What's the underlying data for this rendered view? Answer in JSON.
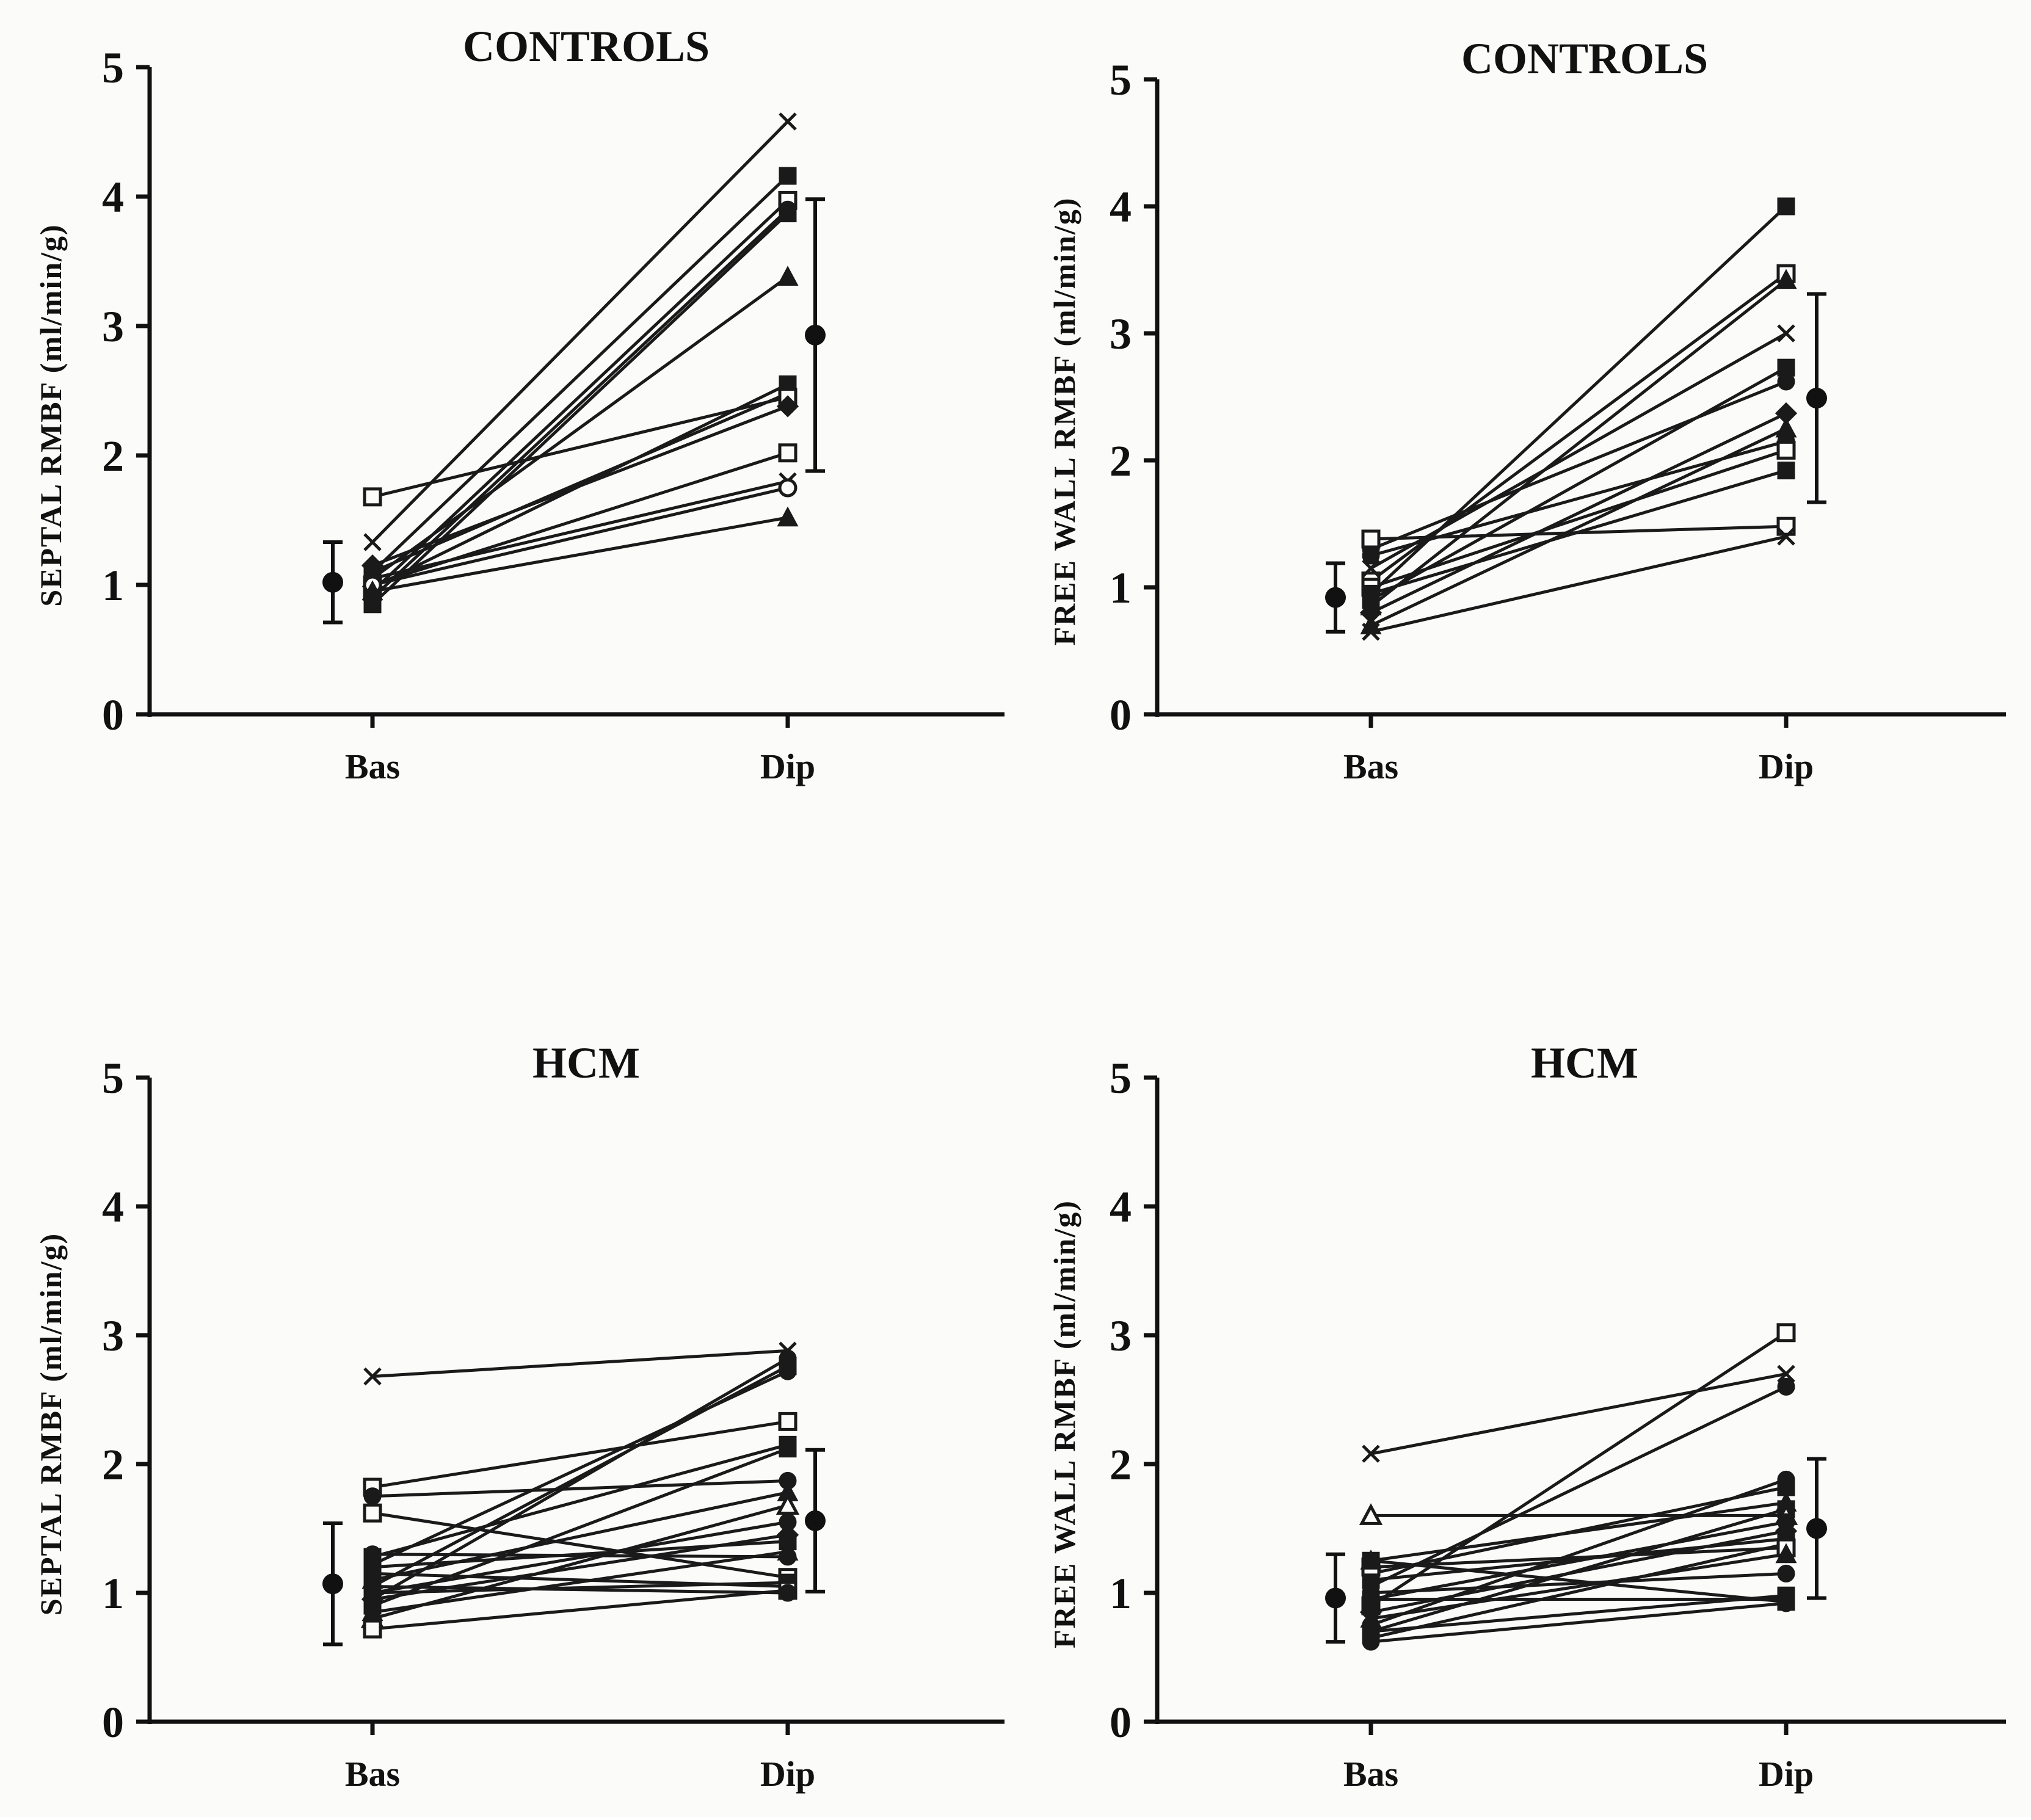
{
  "chart_data": [
    {
      "type": "line",
      "panel": "top-left",
      "title": "CONTROLS",
      "ylabel": "SEPTAL RMBF (ml/min/g)",
      "xlabel": "",
      "categories": [
        "Bas",
        "Dip"
      ],
      "ylim": [
        0,
        5
      ],
      "yticks": [
        "0",
        "1",
        "2",
        "3",
        "4",
        "5"
      ],
      "subjects": [
        {
          "marker": "x",
          "values": [
            1.33,
            4.58
          ]
        },
        {
          "marker": "square-filled",
          "values": [
            1.1,
            4.16
          ]
        },
        {
          "marker": "square-open",
          "values": [
            0.95,
            3.97
          ]
        },
        {
          "marker": "circle-filled",
          "values": [
            0.9,
            3.9
          ]
        },
        {
          "marker": "square-filled",
          "values": [
            0.85,
            3.87
          ]
        },
        {
          "marker": "triangle-filled",
          "values": [
            1.05,
            3.38
          ]
        },
        {
          "marker": "square-filled",
          "values": [
            0.98,
            2.55
          ]
        },
        {
          "marker": "circle-filled",
          "values": [
            1.1,
            2.48
          ]
        },
        {
          "marker": "square-open",
          "values": [
            1.68,
            2.45
          ]
        },
        {
          "marker": "diamond-filled",
          "values": [
            1.15,
            2.38
          ]
        },
        {
          "marker": "square-open",
          "values": [
            1.0,
            2.02
          ]
        },
        {
          "marker": "x",
          "values": [
            1.05,
            1.8
          ]
        },
        {
          "marker": "circle-open",
          "values": [
            1.0,
            1.75
          ]
        },
        {
          "marker": "triangle-filled",
          "values": [
            0.95,
            1.52
          ]
        }
      ],
      "mean_sd": [
        {
          "category": "Bas",
          "mean": 1.02,
          "sd": 0.31
        },
        {
          "category": "Dip",
          "mean": 2.93,
          "sd": 1.05
        }
      ]
    },
    {
      "type": "line",
      "panel": "top-right",
      "title": "CONTROLS",
      "ylabel": "FREE WALL RMBF (ml/min/g)",
      "xlabel": "",
      "categories": [
        "Bas",
        "Dip"
      ],
      "ylim": [
        0,
        5
      ],
      "yticks": [
        "0",
        "1",
        "2",
        "3",
        "4",
        "5"
      ],
      "subjects": [
        {
          "marker": "square-filled",
          "values": [
            0.95,
            4.0
          ]
        },
        {
          "marker": "square-open",
          "values": [
            1.05,
            3.47
          ]
        },
        {
          "marker": "triangle-filled",
          "values": [
            0.85,
            3.42
          ]
        },
        {
          "marker": "x",
          "values": [
            1.15,
            3.0
          ]
        },
        {
          "marker": "square-filled",
          "values": [
            0.9,
            2.73
          ]
        },
        {
          "marker": "circle-filled",
          "values": [
            1.3,
            2.62
          ]
        },
        {
          "marker": "diamond-filled",
          "values": [
            0.8,
            2.37
          ]
        },
        {
          "marker": "triangle-filled",
          "values": [
            0.7,
            2.25
          ]
        },
        {
          "marker": "circle-filled",
          "values": [
            1.25,
            2.15
          ]
        },
        {
          "marker": "square-open",
          "values": [
            1.0,
            2.08
          ]
        },
        {
          "marker": "square-filled",
          "values": [
            0.95,
            1.92
          ]
        },
        {
          "marker": "square-open",
          "values": [
            1.38,
            1.48
          ]
        },
        {
          "marker": "x",
          "values": [
            0.65,
            1.4
          ]
        }
      ],
      "mean_sd": [
        {
          "category": "Bas",
          "mean": 0.92,
          "sd": 0.27
        },
        {
          "category": "Dip",
          "mean": 2.49,
          "sd": 0.82
        }
      ]
    },
    {
      "type": "line",
      "panel": "bottom-left",
      "title": "HCM",
      "ylabel": "SEPTAL RMBF (ml/min/g)",
      "xlabel": "",
      "categories": [
        "Bas",
        "Dip"
      ],
      "ylim": [
        0,
        5
      ],
      "yticks": [
        "0",
        "1",
        "2",
        "3",
        "4",
        "5"
      ],
      "subjects": [
        {
          "marker": "x",
          "values": [
            2.68,
            2.88
          ]
        },
        {
          "marker": "circle-filled",
          "values": [
            0.95,
            2.82
          ]
        },
        {
          "marker": "square-filled",
          "values": [
            1.05,
            2.76
          ]
        },
        {
          "marker": "circle-filled",
          "values": [
            1.22,
            2.72
          ]
        },
        {
          "marker": "square-open",
          "values": [
            1.82,
            2.33
          ]
        },
        {
          "marker": "square-filled",
          "values": [
            1.28,
            2.15
          ]
        },
        {
          "marker": "square-filled",
          "values": [
            0.9,
            2.12
          ]
        },
        {
          "marker": "circle-filled",
          "values": [
            1.75,
            1.87
          ]
        },
        {
          "marker": "triangle-filled",
          "values": [
            1.1,
            1.78
          ]
        },
        {
          "marker": "triangle-open",
          "values": [
            0.8,
            1.68
          ]
        },
        {
          "marker": "circle-filled",
          "values": [
            1.0,
            1.55
          ]
        },
        {
          "marker": "diamond-filled",
          "values": [
            0.95,
            1.45
          ]
        },
        {
          "marker": "square-filled",
          "values": [
            1.2,
            1.4
          ]
        },
        {
          "marker": "triangle-filled",
          "values": [
            0.85,
            1.32
          ]
        },
        {
          "marker": "circle-filled",
          "values": [
            1.3,
            1.28
          ]
        },
        {
          "marker": "square-open",
          "values": [
            1.62,
            1.12
          ]
        },
        {
          "marker": "square-filled",
          "values": [
            1.0,
            1.08
          ]
        },
        {
          "marker": "square-filled",
          "values": [
            1.15,
            1.05
          ]
        },
        {
          "marker": "square-open",
          "values": [
            0.72,
            1.02
          ]
        },
        {
          "marker": "circle-filled",
          "values": [
            1.05,
            1.0
          ]
        }
      ],
      "mean_sd": [
        {
          "category": "Bas",
          "mean": 1.07,
          "sd": 0.47
        },
        {
          "category": "Dip",
          "mean": 1.56,
          "sd": 0.55
        }
      ]
    },
    {
      "type": "line",
      "panel": "bottom-right",
      "title": "HCM",
      "ylabel": "FREE WALL RMBF (ml/min/g)",
      "xlabel": "",
      "categories": [
        "Bas",
        "Dip"
      ],
      "ylim": [
        0,
        5
      ],
      "yticks": [
        "0",
        "1",
        "2",
        "3",
        "4",
        "5"
      ],
      "subjects": [
        {
          "marker": "square-open",
          "values": [
            0.9,
            3.02
          ]
        },
        {
          "marker": "x",
          "values": [
            2.08,
            2.7
          ]
        },
        {
          "marker": "circle-filled",
          "values": [
            1.05,
            2.6
          ]
        },
        {
          "marker": "circle-filled",
          "values": [
            0.75,
            1.88
          ]
        },
        {
          "marker": "square-filled",
          "values": [
            1.15,
            1.82
          ]
        },
        {
          "marker": "triangle-filled",
          "values": [
            1.25,
            1.7
          ]
        },
        {
          "marker": "square-filled",
          "values": [
            0.7,
            1.65
          ]
        },
        {
          "marker": "triangle-open",
          "values": [
            1.6,
            1.6
          ]
        },
        {
          "marker": "circle-filled",
          "values": [
            0.95,
            1.55
          ]
        },
        {
          "marker": "diamond-filled",
          "values": [
            0.85,
            1.48
          ]
        },
        {
          "marker": "square-filled",
          "values": [
            1.1,
            1.42
          ]
        },
        {
          "marker": "circle-filled",
          "values": [
            0.65,
            1.38
          ]
        },
        {
          "marker": "square-open",
          "values": [
            1.2,
            1.35
          ]
        },
        {
          "marker": "triangle-filled",
          "values": [
            0.8,
            1.3
          ]
        },
        {
          "marker": "circle-filled",
          "values": [
            1.0,
            1.15
          ]
        },
        {
          "marker": "square-filled",
          "values": [
            0.7,
            0.98
          ]
        },
        {
          "marker": "square-filled",
          "values": [
            0.95,
            0.95
          ]
        },
        {
          "marker": "square-filled",
          "values": [
            1.25,
            0.93
          ]
        },
        {
          "marker": "circle-filled",
          "values": [
            0.62,
            0.92
          ]
        }
      ],
      "mean_sd": [
        {
          "category": "Bas",
          "mean": 0.96,
          "sd": 0.34
        },
        {
          "category": "Dip",
          "mean": 1.5,
          "sd": 0.54
        }
      ]
    }
  ]
}
